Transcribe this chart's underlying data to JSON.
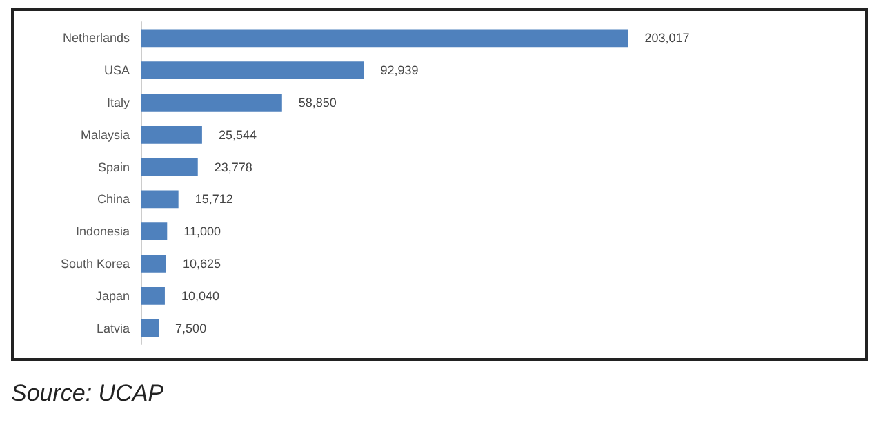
{
  "chart_data": {
    "type": "bar",
    "orientation": "horizontal",
    "categories": [
      "Netherlands",
      "USA",
      "Italy",
      "Malaysia",
      "Spain",
      "China",
      "Indonesia",
      "South Korea",
      "Japan",
      "Latvia"
    ],
    "values": [
      203017,
      92939,
      58850,
      25544,
      23778,
      15712,
      11000,
      10625,
      10040,
      7500
    ],
    "value_labels": [
      "203,017",
      "92,939",
      "58,850",
      "25,544",
      "23,778",
      "15,712",
      "11,000",
      "10,625",
      "10,040",
      "7,500"
    ],
    "color": "#4f81bd",
    "annotations": [
      "Source: UCAP"
    ]
  }
}
